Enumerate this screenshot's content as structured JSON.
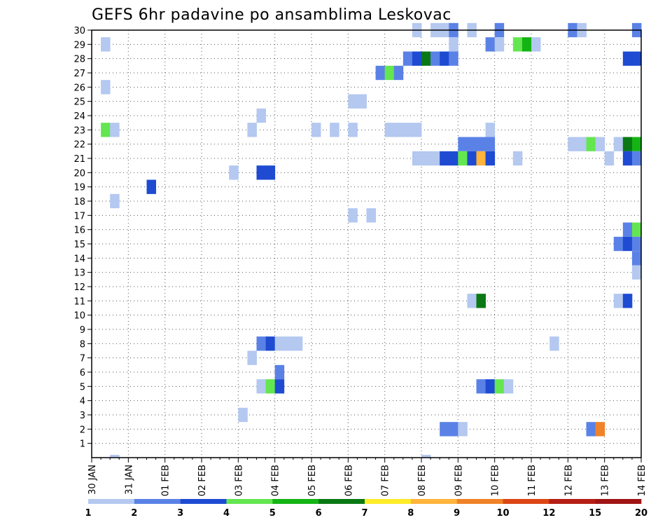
{
  "chart_data": {
    "type": "heatmap",
    "title": "GEFS 6hr padavine po ansamblima Leskovac",
    "xlabel": "",
    "ylabel": "",
    "x_tick_labels": [
      "30 JAN",
      "31 JAN",
      "01 FEB",
      "02 FEB",
      "03 FEB",
      "04 FEB",
      "05 FEB",
      "06 FEB",
      "07 FEB",
      "08 FEB",
      "09 FEB",
      "10 FEB",
      "11 FEB",
      "12 FEB",
      "13 FEB",
      "14 FEB"
    ],
    "y_tick_labels": [
      "1",
      "2",
      "3",
      "4",
      "5",
      "6",
      "7",
      "8",
      "9",
      "10",
      "11",
      "12",
      "13",
      "14",
      "15",
      "16",
      "17",
      "18",
      "19",
      "20",
      "21",
      "22",
      "23",
      "24",
      "25",
      "26",
      "27",
      "28",
      "29",
      "30"
    ],
    "time_steps_per_day": 4,
    "n_time_steps": 60,
    "ylim": [
      0,
      30
    ],
    "grid": true,
    "colorbar": {
      "labels": [
        "1",
        "2",
        "3",
        "4",
        "5",
        "6",
        "7",
        "8",
        "9",
        "10",
        "12",
        "15",
        "20"
      ],
      "colors": [
        "#b4c8f0",
        "#5a82e6",
        "#1e4bd2",
        "#64e650",
        "#14b414",
        "#0a7814",
        "#ffeb28",
        "#ffb43c",
        "#f08228",
        "#dc4614",
        "#b41e14",
        "#a01414",
        "#780a0a"
      ]
    },
    "cells": [
      {
        "member": 30,
        "t": 36,
        "level": 1
      },
      {
        "member": 30,
        "t": 38,
        "level": 1
      },
      {
        "member": 30,
        "t": 39,
        "level": 1
      },
      {
        "member": 30,
        "t": 40,
        "level": 2
      },
      {
        "member": 30,
        "t": 42,
        "level": 1
      },
      {
        "member": 30,
        "t": 45,
        "level": 2
      },
      {
        "member": 30,
        "t": 53,
        "level": 2
      },
      {
        "member": 30,
        "t": 54,
        "level": 1
      },
      {
        "member": 30,
        "t": 60,
        "level": 2
      },
      {
        "member": 29,
        "t": 2,
        "level": 1
      },
      {
        "member": 29,
        "t": 40,
        "level": 1
      },
      {
        "member": 29,
        "t": 44,
        "level": 2
      },
      {
        "member": 29,
        "t": 45,
        "level": 1
      },
      {
        "member": 29,
        "t": 47,
        "level": 4
      },
      {
        "member": 29,
        "t": 48,
        "level": 5
      },
      {
        "member": 29,
        "t": 49,
        "level": 1
      },
      {
        "member": 28,
        "t": 35,
        "level": 2
      },
      {
        "member": 28,
        "t": 36,
        "level": 3
      },
      {
        "member": 28,
        "t": 37,
        "level": 6
      },
      {
        "member": 28,
        "t": 38,
        "level": 2
      },
      {
        "member": 28,
        "t": 39,
        "level": 3
      },
      {
        "member": 28,
        "t": 40,
        "level": 2
      },
      {
        "member": 28,
        "t": 59,
        "level": 3
      },
      {
        "member": 28,
        "t": 60,
        "level": 3
      },
      {
        "member": 27,
        "t": 32,
        "level": 2
      },
      {
        "member": 27,
        "t": 33,
        "level": 4
      },
      {
        "member": 27,
        "t": 34,
        "level": 2
      },
      {
        "member": 26,
        "t": 2,
        "level": 1
      },
      {
        "member": 25,
        "t": 29,
        "level": 1
      },
      {
        "member": 25,
        "t": 30,
        "level": 1
      },
      {
        "member": 24,
        "t": 19,
        "level": 1
      },
      {
        "member": 23,
        "t": 2,
        "level": 4
      },
      {
        "member": 23,
        "t": 3,
        "level": 1
      },
      {
        "member": 23,
        "t": 18,
        "level": 1
      },
      {
        "member": 23,
        "t": 25,
        "level": 1
      },
      {
        "member": 23,
        "t": 27,
        "level": 1
      },
      {
        "member": 23,
        "t": 29,
        "level": 1
      },
      {
        "member": 23,
        "t": 33,
        "level": 1
      },
      {
        "member": 23,
        "t": 34,
        "level": 1
      },
      {
        "member": 23,
        "t": 35,
        "level": 1
      },
      {
        "member": 23,
        "t": 36,
        "level": 1
      },
      {
        "member": 23,
        "t": 44,
        "level": 1
      },
      {
        "member": 22,
        "t": 41,
        "level": 2
      },
      {
        "member": 22,
        "t": 42,
        "level": 2
      },
      {
        "member": 22,
        "t": 43,
        "level": 2
      },
      {
        "member": 22,
        "t": 44,
        "level": 2
      },
      {
        "member": 22,
        "t": 53,
        "level": 1
      },
      {
        "member": 22,
        "t": 54,
        "level": 1
      },
      {
        "member": 22,
        "t": 55,
        "level": 4
      },
      {
        "member": 22,
        "t": 56,
        "level": 1
      },
      {
        "member": 22,
        "t": 58,
        "level": 1
      },
      {
        "member": 22,
        "t": 59,
        "level": 6
      },
      {
        "member": 22,
        "t": 60,
        "level": 5
      },
      {
        "member": 21,
        "t": 36,
        "level": 1
      },
      {
        "member": 21,
        "t": 37,
        "level": 1
      },
      {
        "member": 21,
        "t": 38,
        "level": 1
      },
      {
        "member": 21,
        "t": 39,
        "level": 3
      },
      {
        "member": 21,
        "t": 40,
        "level": 3
      },
      {
        "member": 21,
        "t": 41,
        "level": 4
      },
      {
        "member": 21,
        "t": 42,
        "level": 3
      },
      {
        "member": 21,
        "t": 43,
        "level": 8
      },
      {
        "member": 21,
        "t": 44,
        "level": 3
      },
      {
        "member": 21,
        "t": 47,
        "level": 1
      },
      {
        "member": 21,
        "t": 57,
        "level": 1
      },
      {
        "member": 21,
        "t": 59,
        "level": 3
      },
      {
        "member": 21,
        "t": 60,
        "level": 2
      },
      {
        "member": 20,
        "t": 16,
        "level": 1
      },
      {
        "member": 20,
        "t": 19,
        "level": 3
      },
      {
        "member": 20,
        "t": 20,
        "level": 3
      },
      {
        "member": 19,
        "t": 7,
        "level": 3
      },
      {
        "member": 18,
        "t": 3,
        "level": 1
      },
      {
        "member": 17,
        "t": 29,
        "level": 1
      },
      {
        "member": 17,
        "t": 31,
        "level": 1
      },
      {
        "member": 16,
        "t": 59,
        "level": 2
      },
      {
        "member": 16,
        "t": 60,
        "level": 4
      },
      {
        "member": 15,
        "t": 58,
        "level": 2
      },
      {
        "member": 15,
        "t": 59,
        "level": 3
      },
      {
        "member": 15,
        "t": 60,
        "level": 2
      },
      {
        "member": 14,
        "t": 60,
        "level": 2
      },
      {
        "member": 13,
        "t": 60,
        "level": 1
      },
      {
        "member": 11,
        "t": 42,
        "level": 1
      },
      {
        "member": 11,
        "t": 43,
        "level": 6
      },
      {
        "member": 11,
        "t": 58,
        "level": 1
      },
      {
        "member": 11,
        "t": 59,
        "level": 3
      },
      {
        "member": 8,
        "t": 19,
        "level": 2
      },
      {
        "member": 8,
        "t": 20,
        "level": 3
      },
      {
        "member": 8,
        "t": 21,
        "level": 1
      },
      {
        "member": 8,
        "t": 22,
        "level": 1
      },
      {
        "member": 8,
        "t": 23,
        "level": 1
      },
      {
        "member": 8,
        "t": 51,
        "level": 1
      },
      {
        "member": 7,
        "t": 18,
        "level": 1
      },
      {
        "member": 6,
        "t": 21,
        "level": 2
      },
      {
        "member": 5,
        "t": 19,
        "level": 1
      },
      {
        "member": 5,
        "t": 20,
        "level": 4
      },
      {
        "member": 5,
        "t": 21,
        "level": 3
      },
      {
        "member": 5,
        "t": 43,
        "level": 2
      },
      {
        "member": 5,
        "t": 44,
        "level": 3
      },
      {
        "member": 5,
        "t": 45,
        "level": 4
      },
      {
        "member": 5,
        "t": 46,
        "level": 1
      },
      {
        "member": 3,
        "t": 17,
        "level": 1
      },
      {
        "member": 2,
        "t": 39,
        "level": 2
      },
      {
        "member": 2,
        "t": 40,
        "level": 2
      },
      {
        "member": 2,
        "t": 41,
        "level": 1
      },
      {
        "member": 2,
        "t": 55,
        "level": 2
      },
      {
        "member": 2,
        "t": 56,
        "level": 9
      },
      {
        "member": 0,
        "t": 3,
        "level": 1
      },
      {
        "member": 0,
        "t": 37,
        "level": 1
      }
    ]
  }
}
